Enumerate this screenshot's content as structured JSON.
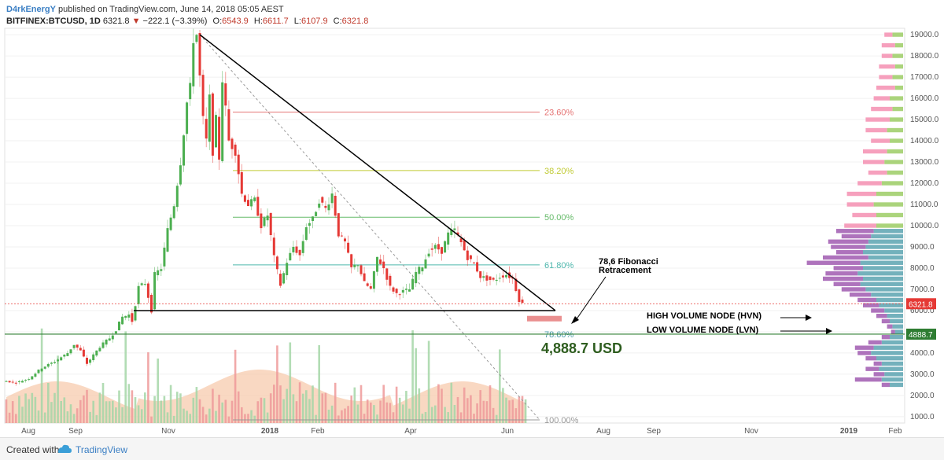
{
  "header": {
    "author": "D4rkEnergY",
    "published": "published on TradingView.com, June 14, 2018 05:05 AEST",
    "symbol": "BITFINEX:BTCUSD, 1D",
    "last": "6321.8",
    "change": "−222.1 (−3.39%)",
    "o_label": "O:",
    "o": "6543.9",
    "h_label": "H:",
    "h": "6611.7",
    "l_label": "L:",
    "l": "6107.9",
    "c_label": "C:",
    "c": "6321.8"
  },
  "footer": {
    "created": "Created with",
    "brand": "TradingView"
  },
  "colors": {
    "up": "#4caf50",
    "down": "#e53935",
    "fib_23": "#e57373",
    "fib_38": "#c0ca33",
    "fib_50": "#66bb6a",
    "fib_61": "#4db6ac",
    "fib_78": "#4a9ba8",
    "vp_up": "#9ccc65",
    "vp_down": "#f48fb1",
    "vp_hv_up": "#5ba3b0",
    "vp_hv_down": "#a05ab0"
  },
  "chart_data": {
    "type": "candlestick",
    "symbol": "BITFINEX:BTCUSD",
    "interval": "1D",
    "x_ticks": [
      "Aug",
      "Sep",
      "Nov",
      "2018",
      "Feb",
      "Apr",
      "Jun",
      "Aug",
      "Sep",
      "Nov",
      "2019",
      "Feb"
    ],
    "y_ticks": [
      "19000.0",
      "18000.0",
      "17000.0",
      "16000.0",
      "15000.0",
      "14000.0",
      "13000.0",
      "12000.0",
      "11000.0",
      "10000.0",
      "9000.0",
      "8000.0",
      "7000.0",
      "6000.0",
      "5000.0",
      "4000.0",
      "3000.0",
      "2000.0",
      "1000.0"
    ],
    "ylim": [
      700,
      19300
    ],
    "price_path": [
      [
        0,
        2700
      ],
      [
        4,
        2600
      ],
      [
        8,
        2800
      ],
      [
        12,
        3300
      ],
      [
        16,
        3600
      ],
      [
        20,
        4000
      ],
      [
        22,
        4400
      ],
      [
        24,
        4100
      ],
      [
        26,
        3500
      ],
      [
        28,
        3900
      ],
      [
        30,
        4300
      ],
      [
        33,
        4700
      ],
      [
        35,
        5100
      ],
      [
        37,
        5700
      ],
      [
        39,
        5800
      ],
      [
        40,
        5500
      ],
      [
        42,
        7100
      ],
      [
        44,
        7300
      ],
      [
        46,
        6000
      ],
      [
        47,
        7700
      ],
      [
        49,
        8000
      ],
      [
        51,
        9800
      ],
      [
        53,
        11000
      ],
      [
        55,
        13000
      ],
      [
        57,
        15800
      ],
      [
        58,
        16500
      ],
      [
        59,
        18800
      ],
      [
        60,
        19000
      ],
      [
        61,
        17000
      ],
      [
        62,
        15000
      ],
      [
        63,
        14000
      ],
      [
        64,
        16000
      ],
      [
        65,
        13500
      ],
      [
        66,
        15000
      ],
      [
        67,
        13200
      ],
      [
        68,
        16900
      ],
      [
        69,
        15500
      ],
      [
        70,
        14000
      ],
      [
        72,
        13500
      ],
      [
        74,
        11500
      ],
      [
        76,
        11000
      ],
      [
        78,
        11200
      ],
      [
        80,
        10000
      ],
      [
        82,
        10500
      ],
      [
        84,
        8500
      ],
      [
        86,
        7200
      ],
      [
        88,
        8300
      ],
      [
        90,
        9000
      ],
      [
        92,
        8600
      ],
      [
        94,
        10000
      ],
      [
        96,
        10300
      ],
      [
        98,
        11200
      ],
      [
        100,
        10800
      ],
      [
        102,
        11500
      ],
      [
        104,
        9600
      ],
      [
        106,
        9200
      ],
      [
        108,
        8000
      ],
      [
        110,
        8200
      ],
      [
        112,
        7300
      ],
      [
        114,
        7000
      ],
      [
        116,
        8500
      ],
      [
        118,
        8000
      ],
      [
        120,
        7100
      ],
      [
        122,
        6800
      ],
      [
        124,
        6900
      ],
      [
        126,
        7000
      ],
      [
        128,
        7800
      ],
      [
        130,
        8100
      ],
      [
        132,
        8800
      ],
      [
        134,
        9000
      ],
      [
        136,
        8800
      ],
      [
        138,
        9600
      ],
      [
        140,
        9800
      ],
      [
        142,
        9200
      ],
      [
        144,
        8500
      ],
      [
        146,
        8200
      ],
      [
        148,
        7600
      ],
      [
        150,
        7500
      ],
      [
        152,
        7400
      ],
      [
        154,
        7600
      ],
      [
        156,
        7700
      ],
      [
        158,
        7500
      ],
      [
        160,
        6500
      ],
      [
        161,
        6321.8
      ]
    ],
    "total_days": 165,
    "fib_levels": [
      {
        "label": "23.60%",
        "price": 15350
      },
      {
        "label": "38.20%",
        "price": 12600
      },
      {
        "label": "50.00%",
        "price": 10400
      },
      {
        "label": "61.80%",
        "price": 8150
      },
      {
        "label": "78.60%",
        "price": 4888.7
      },
      {
        "label": "100.00%",
        "price": 850
      }
    ],
    "current_price": "6321.8",
    "current_price_value": 6321.8,
    "target_label": "4888.7",
    "target_value": 4888.7,
    "support_price": 6000,
    "annotations": {
      "fib_note_line1": "78,6 Fibonacci",
      "fib_note_line2": "Retracement",
      "hvn": "HIGH VOLUME NODE (HVN)",
      "lvn": "LOW VOLUME NODE (LVN)",
      "target_usd": "4,888.7 USD"
    },
    "volume_profile": [
      {
        "price": 19000,
        "up": 8,
        "down": 6
      },
      {
        "price": 18500,
        "up": 6,
        "down": 10
      },
      {
        "price": 18000,
        "up": 8,
        "down": 8
      },
      {
        "price": 17500,
        "up": 6,
        "down": 12
      },
      {
        "price": 17000,
        "up": 8,
        "down": 10
      },
      {
        "price": 16500,
        "up": 6,
        "down": 14
      },
      {
        "price": 16000,
        "up": 10,
        "down": 12
      },
      {
        "price": 15500,
        "up": 8,
        "down": 16
      },
      {
        "price": 15000,
        "up": 10,
        "down": 18
      },
      {
        "price": 14500,
        "up": 12,
        "down": 16
      },
      {
        "price": 14000,
        "up": 10,
        "down": 14
      },
      {
        "price": 13500,
        "up": 12,
        "down": 18
      },
      {
        "price": 13000,
        "up": 14,
        "down": 16
      },
      {
        "price": 12500,
        "up": 12,
        "down": 14
      },
      {
        "price": 12000,
        "up": 16,
        "down": 18
      },
      {
        "price": 11500,
        "up": 20,
        "down": 22
      },
      {
        "price": 11000,
        "up": 22,
        "down": 20
      },
      {
        "price": 10500,
        "up": 20,
        "down": 18
      },
      {
        "price": 10000,
        "up": 20,
        "down": 24
      },
      {
        "price": 9750,
        "up": 22,
        "down": 28,
        "hv": true
      },
      {
        "price": 9500,
        "up": 24,
        "down": 22,
        "hv": true
      },
      {
        "price": 9250,
        "up": 26,
        "down": 30,
        "hv": true
      },
      {
        "price": 9000,
        "up": 28,
        "down": 26,
        "hv": true
      },
      {
        "price": 8750,
        "up": 30,
        "down": 20,
        "hv": true
      },
      {
        "price": 8500,
        "up": 26,
        "down": 34,
        "hv": true
      },
      {
        "price": 8250,
        "up": 32,
        "down": 40,
        "hv": true
      },
      {
        "price": 8000,
        "up": 30,
        "down": 22,
        "hv": true
      },
      {
        "price": 7750,
        "up": 34,
        "down": 24,
        "hv": true
      },
      {
        "price": 7500,
        "up": 30,
        "down": 30,
        "hv": true
      },
      {
        "price": 7250,
        "up": 32,
        "down": 20,
        "hv": true
      },
      {
        "price": 7000,
        "up": 28,
        "down": 18,
        "hv": true
      },
      {
        "price": 6750,
        "up": 24,
        "down": 16,
        "hv": true
      },
      {
        "price": 6500,
        "up": 20,
        "down": 14,
        "hv": true
      },
      {
        "price": 6250,
        "up": 18,
        "down": 12,
        "hv": true
      },
      {
        "price": 6000,
        "up": 14,
        "down": 10,
        "hv": true
      },
      {
        "price": 5750,
        "up": 12,
        "down": 8,
        "hv": true
      },
      {
        "price": 5500,
        "up": 10,
        "down": 6,
        "hv": true
      },
      {
        "price": 5250,
        "up": 8,
        "down": 4,
        "hv": true
      },
      {
        "price": 5000,
        "up": 6,
        "down": 3,
        "hv": true
      },
      {
        "price": 4750,
        "up": 10,
        "down": 6,
        "hv": true
      },
      {
        "price": 4500,
        "up": 16,
        "down": 10,
        "hv": true
      },
      {
        "price": 4250,
        "up": 22,
        "down": 14,
        "hv": true
      },
      {
        "price": 4000,
        "up": 24,
        "down": 10,
        "hv": true
      },
      {
        "price": 3750,
        "up": 20,
        "down": 8,
        "hv": true
      },
      {
        "price": 3500,
        "up": 16,
        "down": 6,
        "hv": true
      },
      {
        "price": 3250,
        "up": 18,
        "down": 10,
        "hv": true
      },
      {
        "price": 3000,
        "up": 14,
        "down": 8,
        "hv": true
      },
      {
        "price": 2750,
        "up": 16,
        "down": 20,
        "hv": true
      },
      {
        "price": 2500,
        "up": 10,
        "down": 6,
        "hv": true
      }
    ]
  }
}
